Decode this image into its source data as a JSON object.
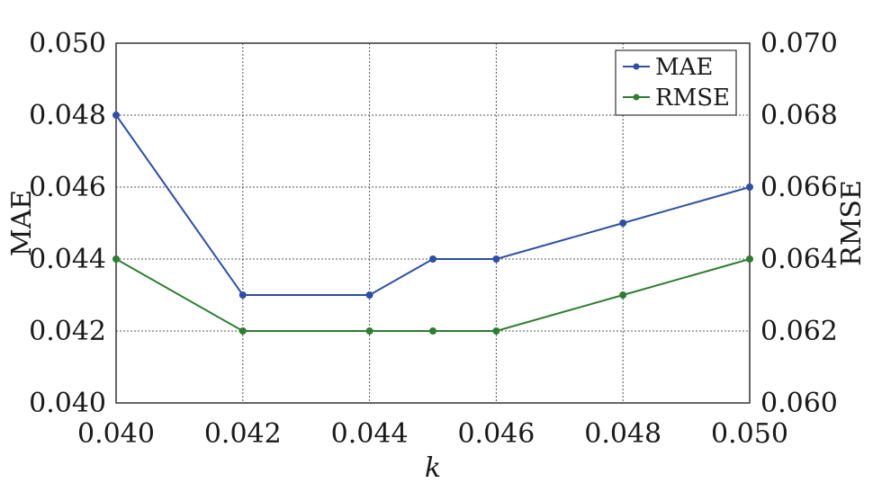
{
  "chart_data": {
    "type": "line",
    "x": [
      0.04,
      0.042,
      0.044,
      0.045,
      0.046,
      0.048,
      0.05
    ],
    "xlabel": "k",
    "xlim": [
      0.04,
      0.05
    ],
    "xticks": [
      "0.040",
      "0.042",
      "0.044",
      "0.046",
      "0.048",
      "0.050"
    ],
    "ylabel_left": "MAE",
    "ylim_left": [
      0.04,
      0.05
    ],
    "yticks_left": [
      "0.040",
      "0.042",
      "0.044",
      "0.046",
      "0.048",
      "0.050"
    ],
    "ylabel_right": "RMSE",
    "ylim_right": [
      0.06,
      0.07
    ],
    "yticks_right": [
      "0.060",
      "0.062",
      "0.064",
      "0.066",
      "0.068",
      "0.070"
    ],
    "grid": true,
    "legend_position": "top-right",
    "series": [
      {
        "name": "MAE",
        "axis": "left",
        "color": "#2e4fa3",
        "values": [
          0.048,
          0.043,
          0.043,
          0.044,
          0.044,
          0.045,
          0.046
        ]
      },
      {
        "name": "RMSE",
        "axis": "right",
        "color": "#2e7d32",
        "values": [
          0.064,
          0.062,
          0.062,
          0.062,
          0.062,
          0.063,
          0.064
        ]
      }
    ]
  }
}
